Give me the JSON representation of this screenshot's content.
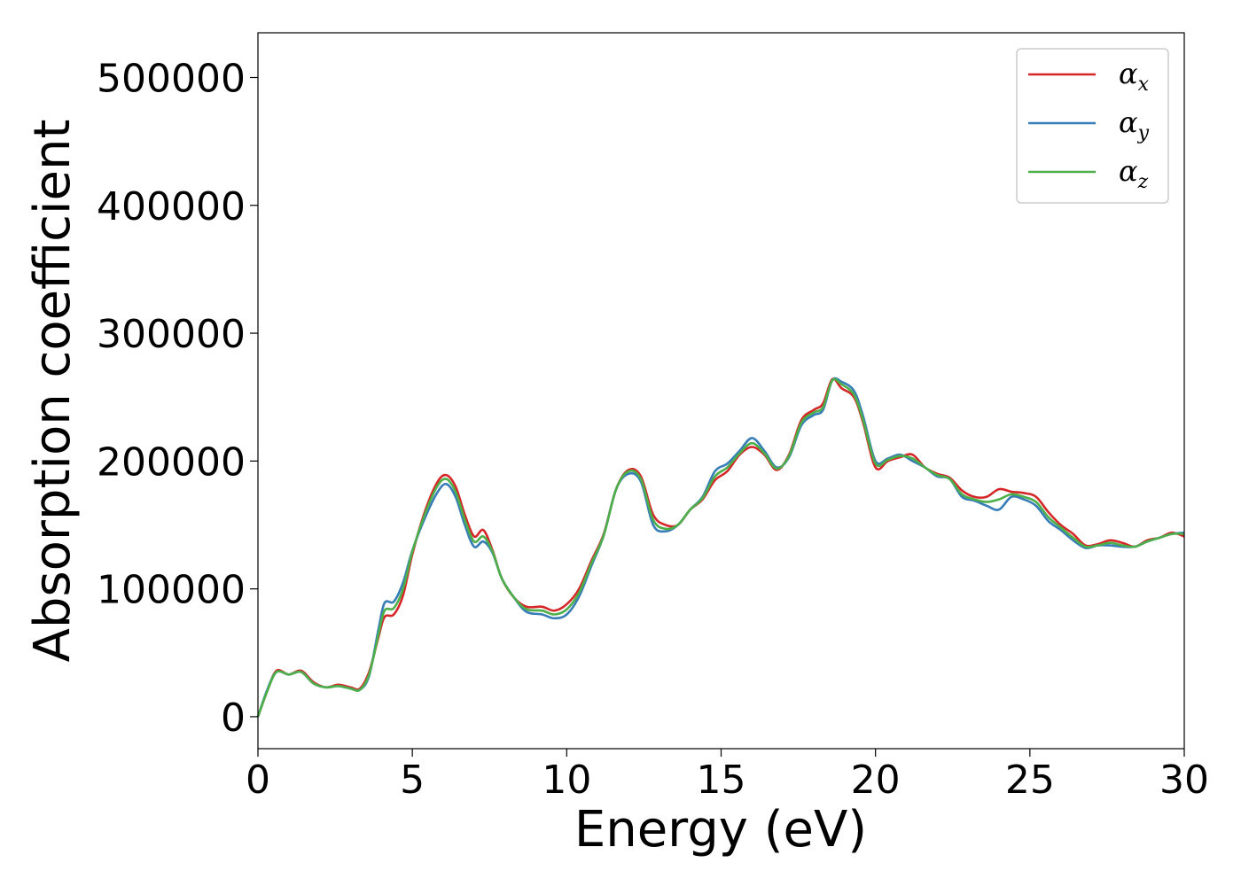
{
  "chart_data": {
    "type": "line",
    "title": "",
    "xlabel": "Energy (eV)",
    "ylabel": "Absorption coefficient",
    "xlim": [
      0,
      30
    ],
    "ylim": [
      -25000,
      535000
    ],
    "xticks": [
      0,
      5,
      10,
      15,
      20,
      25,
      30
    ],
    "yticks": [
      0,
      100000,
      200000,
      300000,
      400000,
      500000
    ],
    "xtick_labels": [
      "0",
      "5",
      "10",
      "15",
      "20",
      "25",
      "30"
    ],
    "ytick_labels": [
      "0",
      "100000",
      "200000",
      "300000",
      "400000",
      "500000"
    ],
    "grid": false,
    "legend_position": "top-right",
    "series": [
      {
        "name": "α",
        "subscript": "x",
        "color": "#d62728",
        "points": [
          [
            0,
            0
          ],
          [
            0.3,
            20000
          ],
          [
            0.6,
            36000
          ],
          [
            1.0,
            33000
          ],
          [
            1.4,
            36000
          ],
          [
            1.8,
            27000
          ],
          [
            2.2,
            23000
          ],
          [
            2.6,
            25000
          ],
          [
            3.0,
            23000
          ],
          [
            3.3,
            22000
          ],
          [
            3.6,
            35000
          ],
          [
            3.9,
            62000
          ],
          [
            4.1,
            78000
          ],
          [
            4.4,
            80000
          ],
          [
            4.7,
            95000
          ],
          [
            5.0,
            127000
          ],
          [
            5.4,
            160000
          ],
          [
            5.8,
            183000
          ],
          [
            6.1,
            189000
          ],
          [
            6.4,
            180000
          ],
          [
            6.7,
            158000
          ],
          [
            7.0,
            141000
          ],
          [
            7.3,
            146000
          ],
          [
            7.6,
            130000
          ],
          [
            7.9,
            108000
          ],
          [
            8.3,
            93000
          ],
          [
            8.7,
            86000
          ],
          [
            9.2,
            86000
          ],
          [
            9.6,
            83000
          ],
          [
            10.0,
            88000
          ],
          [
            10.4,
            100000
          ],
          [
            10.8,
            122000
          ],
          [
            11.2,
            143000
          ],
          [
            11.6,
            178000
          ],
          [
            12.0,
            193000
          ],
          [
            12.4,
            188000
          ],
          [
            12.8,
            158000
          ],
          [
            13.2,
            150000
          ],
          [
            13.6,
            150000
          ],
          [
            14.0,
            162000
          ],
          [
            14.4,
            170000
          ],
          [
            14.8,
            185000
          ],
          [
            15.2,
            192000
          ],
          [
            15.6,
            205000
          ],
          [
            16.0,
            211000
          ],
          [
            16.4,
            205000
          ],
          [
            16.8,
            193000
          ],
          [
            17.2,
            205000
          ],
          [
            17.6,
            232000
          ],
          [
            18.0,
            240000
          ],
          [
            18.3,
            245000
          ],
          [
            18.6,
            264000
          ],
          [
            18.9,
            257000
          ],
          [
            19.3,
            250000
          ],
          [
            19.6,
            230000
          ],
          [
            20.0,
            195000
          ],
          [
            20.4,
            200000
          ],
          [
            20.8,
            203000
          ],
          [
            21.2,
            205000
          ],
          [
            21.6,
            195000
          ],
          [
            22.0,
            190000
          ],
          [
            22.4,
            187000
          ],
          [
            22.8,
            177000
          ],
          [
            23.2,
            172000
          ],
          [
            23.6,
            172000
          ],
          [
            24.0,
            178000
          ],
          [
            24.4,
            176000
          ],
          [
            24.8,
            175000
          ],
          [
            25.2,
            172000
          ],
          [
            25.6,
            160000
          ],
          [
            26.0,
            150000
          ],
          [
            26.4,
            143000
          ],
          [
            26.8,
            134000
          ],
          [
            27.2,
            135000
          ],
          [
            27.6,
            138000
          ],
          [
            28.0,
            136000
          ],
          [
            28.4,
            133000
          ],
          [
            28.8,
            138000
          ],
          [
            29.2,
            140000
          ],
          [
            29.6,
            144000
          ],
          [
            30,
            141000
          ]
        ]
      },
      {
        "name": "α",
        "subscript": "y",
        "color": "#377eb8",
        "points": [
          [
            0,
            0
          ],
          [
            0.3,
            21000
          ],
          [
            0.6,
            35000
          ],
          [
            1.0,
            33000
          ],
          [
            1.4,
            35000
          ],
          [
            1.8,
            26000
          ],
          [
            2.2,
            23000
          ],
          [
            2.6,
            24000
          ],
          [
            3.0,
            22000
          ],
          [
            3.3,
            21000
          ],
          [
            3.6,
            32000
          ],
          [
            3.9,
            68000
          ],
          [
            4.1,
            89000
          ],
          [
            4.4,
            90000
          ],
          [
            4.7,
            105000
          ],
          [
            5.0,
            130000
          ],
          [
            5.4,
            155000
          ],
          [
            5.8,
            175000
          ],
          [
            6.1,
            182000
          ],
          [
            6.4,
            172000
          ],
          [
            6.7,
            150000
          ],
          [
            7.0,
            133000
          ],
          [
            7.3,
            137000
          ],
          [
            7.6,
            128000
          ],
          [
            7.9,
            108000
          ],
          [
            8.3,
            93000
          ],
          [
            8.7,
            82000
          ],
          [
            9.2,
            80000
          ],
          [
            9.6,
            77000
          ],
          [
            10.0,
            80000
          ],
          [
            10.4,
            94000
          ],
          [
            10.8,
            118000
          ],
          [
            11.2,
            142000
          ],
          [
            11.6,
            178000
          ],
          [
            12.0,
            190000
          ],
          [
            12.4,
            184000
          ],
          [
            12.8,
            150000
          ],
          [
            13.2,
            145000
          ],
          [
            13.6,
            150000
          ],
          [
            14.0,
            162000
          ],
          [
            14.4,
            172000
          ],
          [
            14.8,
            192000
          ],
          [
            15.2,
            198000
          ],
          [
            15.6,
            208000
          ],
          [
            16.0,
            218000
          ],
          [
            16.4,
            208000
          ],
          [
            16.8,
            195000
          ],
          [
            17.2,
            203000
          ],
          [
            17.6,
            228000
          ],
          [
            18.0,
            236000
          ],
          [
            18.3,
            240000
          ],
          [
            18.6,
            263000
          ],
          [
            18.9,
            262000
          ],
          [
            19.3,
            255000
          ],
          [
            19.6,
            235000
          ],
          [
            20.0,
            200000
          ],
          [
            20.4,
            202000
          ],
          [
            20.8,
            205000
          ],
          [
            21.2,
            200000
          ],
          [
            21.6,
            195000
          ],
          [
            22.0,
            188000
          ],
          [
            22.4,
            186000
          ],
          [
            22.8,
            172000
          ],
          [
            23.2,
            169000
          ],
          [
            23.6,
            165000
          ],
          [
            24.0,
            162000
          ],
          [
            24.4,
            172000
          ],
          [
            24.8,
            170000
          ],
          [
            25.2,
            165000
          ],
          [
            25.6,
            153000
          ],
          [
            26.0,
            146000
          ],
          [
            26.4,
            138000
          ],
          [
            26.8,
            132000
          ],
          [
            27.2,
            134000
          ],
          [
            27.6,
            134000
          ],
          [
            28.0,
            133000
          ],
          [
            28.4,
            133000
          ],
          [
            28.8,
            137000
          ],
          [
            29.2,
            140000
          ],
          [
            29.6,
            143000
          ],
          [
            30,
            144000
          ]
        ]
      },
      {
        "name": "α",
        "subscript": "z",
        "color": "#4daf4a",
        "points": [
          [
            0,
            0
          ],
          [
            0.3,
            20000
          ],
          [
            0.6,
            35000
          ],
          [
            1.0,
            33000
          ],
          [
            1.4,
            35000
          ],
          [
            1.8,
            26000
          ],
          [
            2.2,
            23000
          ],
          [
            2.6,
            24000
          ],
          [
            3.0,
            22000
          ],
          [
            3.3,
            21000
          ],
          [
            3.6,
            33000
          ],
          [
            3.9,
            64000
          ],
          [
            4.1,
            83000
          ],
          [
            4.4,
            85000
          ],
          [
            4.7,
            100000
          ],
          [
            5.0,
            129000
          ],
          [
            5.4,
            158000
          ],
          [
            5.8,
            180000
          ],
          [
            6.1,
            186000
          ],
          [
            6.4,
            176000
          ],
          [
            6.7,
            154000
          ],
          [
            7.0,
            137000
          ],
          [
            7.3,
            141000
          ],
          [
            7.6,
            129000
          ],
          [
            7.9,
            108000
          ],
          [
            8.3,
            93000
          ],
          [
            8.7,
            84000
          ],
          [
            9.2,
            83000
          ],
          [
            9.6,
            80000
          ],
          [
            10.0,
            84000
          ],
          [
            10.4,
            97000
          ],
          [
            10.8,
            120000
          ],
          [
            11.2,
            142000
          ],
          [
            11.6,
            178000
          ],
          [
            12.0,
            192000
          ],
          [
            12.4,
            186000
          ],
          [
            12.8,
            154000
          ],
          [
            13.2,
            147000
          ],
          [
            13.6,
            150000
          ],
          [
            14.0,
            162000
          ],
          [
            14.4,
            171000
          ],
          [
            14.8,
            188000
          ],
          [
            15.2,
            195000
          ],
          [
            15.6,
            206000
          ],
          [
            16.0,
            214000
          ],
          [
            16.4,
            206000
          ],
          [
            16.8,
            194000
          ],
          [
            17.2,
            204000
          ],
          [
            17.6,
            230000
          ],
          [
            18.0,
            238000
          ],
          [
            18.3,
            242000
          ],
          [
            18.6,
            263000
          ],
          [
            18.9,
            260000
          ],
          [
            19.3,
            252000
          ],
          [
            19.6,
            232000
          ],
          [
            20.0,
            198000
          ],
          [
            20.4,
            201000
          ],
          [
            20.8,
            204000
          ],
          [
            21.2,
            202000
          ],
          [
            21.6,
            195000
          ],
          [
            22.0,
            189000
          ],
          [
            22.4,
            186000
          ],
          [
            22.8,
            174000
          ],
          [
            23.2,
            170000
          ],
          [
            23.6,
            168000
          ],
          [
            24.0,
            170000
          ],
          [
            24.4,
            174000
          ],
          [
            24.8,
            172000
          ],
          [
            25.2,
            168000
          ],
          [
            25.6,
            156000
          ],
          [
            26.0,
            148000
          ],
          [
            26.4,
            140000
          ],
          [
            26.8,
            133000
          ],
          [
            27.2,
            134000
          ],
          [
            27.6,
            136000
          ],
          [
            28.0,
            134000
          ],
          [
            28.4,
            133000
          ],
          [
            28.8,
            137000
          ],
          [
            29.2,
            140000
          ],
          [
            29.6,
            143000
          ],
          [
            30,
            143000
          ]
        ]
      }
    ]
  }
}
